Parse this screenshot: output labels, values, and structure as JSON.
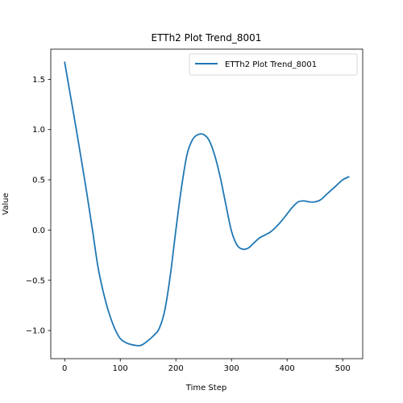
{
  "chart_data": {
    "type": "line",
    "title": "ETTh2 Plot Trend_8001",
    "xlabel": "Time Step",
    "ylabel": "Value",
    "xlim": [
      -25,
      536
    ],
    "ylim": [
      -1.28,
      1.8
    ],
    "xticks": [
      0,
      100,
      200,
      300,
      400,
      500
    ],
    "xtick_labels": [
      "0",
      "100",
      "200",
      "300",
      "400",
      "500"
    ],
    "yticks": [
      -1.0,
      -0.5,
      0.0,
      0.5,
      1.0,
      1.5
    ],
    "ytick_labels": [
      "−1.0",
      "−0.5",
      "0.0",
      "0.5",
      "1.0",
      "1.5"
    ],
    "grid": false,
    "legend_position": "top-right",
    "series": [
      {
        "name": "ETTh2 Plot Trend_8001",
        "color": "#1f77b4",
        "x": [
          0,
          10,
          20,
          30,
          40,
          50,
          60,
          70,
          80,
          90,
          100,
          110,
          120,
          130,
          135,
          140,
          150,
          160,
          170,
          180,
          190,
          200,
          210,
          220,
          230,
          240,
          250,
          260,
          270,
          280,
          290,
          300,
          310,
          320,
          330,
          340,
          350,
          360,
          370,
          380,
          390,
          400,
          410,
          420,
          430,
          440,
          450,
          460,
          470,
          480,
          490,
          500,
          511
        ],
        "y": [
          1.67,
          1.35,
          1.03,
          0.7,
          0.36,
          0.0,
          -0.37,
          -0.63,
          -0.83,
          -0.98,
          -1.08,
          -1.12,
          -1.14,
          -1.15,
          -1.15,
          -1.14,
          -1.1,
          -1.05,
          -0.98,
          -0.8,
          -0.45,
          0.0,
          0.42,
          0.75,
          0.9,
          0.95,
          0.95,
          0.89,
          0.74,
          0.52,
          0.25,
          -0.01,
          -0.15,
          -0.19,
          -0.18,
          -0.13,
          -0.08,
          -0.05,
          -0.02,
          0.03,
          0.09,
          0.16,
          0.23,
          0.28,
          0.29,
          0.28,
          0.28,
          0.3,
          0.35,
          0.4,
          0.45,
          0.5,
          0.53
        ]
      }
    ]
  }
}
